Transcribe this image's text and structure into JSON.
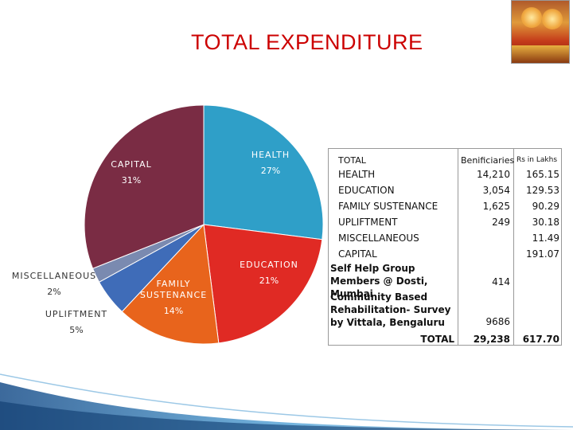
{
  "header": {
    "title": "TOTAL EXPENDITURE"
  },
  "chart_data": {
    "type": "pie",
    "title": "",
    "slices": [
      {
        "label": "HEALTH",
        "value": 27,
        "pct_label": "27%",
        "color": "#2f9fc8"
      },
      {
        "label": "EDUCATION",
        "value": 21,
        "pct_label": "21%",
        "color": "#e02a24"
      },
      {
        "label": "FAMILY SUSTENANCE",
        "value": 14,
        "pct_label": "14%",
        "color": "#e8641c"
      },
      {
        "label": "UPLIFTMENT",
        "value": 5,
        "pct_label": "5%",
        "color": "#3f6cb8"
      },
      {
        "label": "MISCELLANEOUS",
        "value": 2,
        "pct_label": "2%",
        "color": "#7a8ab0"
      },
      {
        "label": "CAPITAL",
        "value": 31,
        "pct_label": "31%",
        "color": "#7a2c44"
      }
    ],
    "label_lines": {
      "HEALTH": [
        "HEALTH"
      ],
      "EDUCATION": [
        "EDUCATION"
      ],
      "FAMILY SUSTENANCE": [
        "FAMILY",
        "SUSTENANCE"
      ],
      "UPLIFTMENT": [
        "UPLIFTMENT"
      ],
      "MISCELLANEOUS": [
        "MISCELLANEOUS"
      ],
      "CAPITAL": [
        "CAPITAL"
      ]
    }
  },
  "table": {
    "head": {
      "name": "TOTAL",
      "beneficiaries": "Benificiaries",
      "amount": "Rs in Lakhs"
    },
    "rows": [
      {
        "name": "HEALTH",
        "beneficiaries": "14,210",
        "amount": "165.15"
      },
      {
        "name": "EDUCATION",
        "beneficiaries": "3,054",
        "amount": "129.53"
      },
      {
        "name": "FAMILY SUSTENANCE",
        "beneficiaries": "1,625",
        "amount": "90.29"
      },
      {
        "name": "UPLIFTMENT",
        "beneficiaries": "249",
        "amount": "30.18"
      },
      {
        "name": "MISCELLANEOUS",
        "beneficiaries": "",
        "amount": "11.49"
      },
      {
        "name": "CAPITAL",
        "beneficiaries": "",
        "amount": "191.07"
      }
    ],
    "extra": [
      {
        "name": "Self Help Group Members @ Dosti, Mumbai",
        "beneficiaries": "414"
      },
      {
        "name": "Community Based Rehabilitation- Survey by Vittala, Bengaluru",
        "beneficiaries": "9686"
      }
    ],
    "total": {
      "name": "TOTAL",
      "beneficiaries": "29,238",
      "amount": "617.70"
    }
  }
}
